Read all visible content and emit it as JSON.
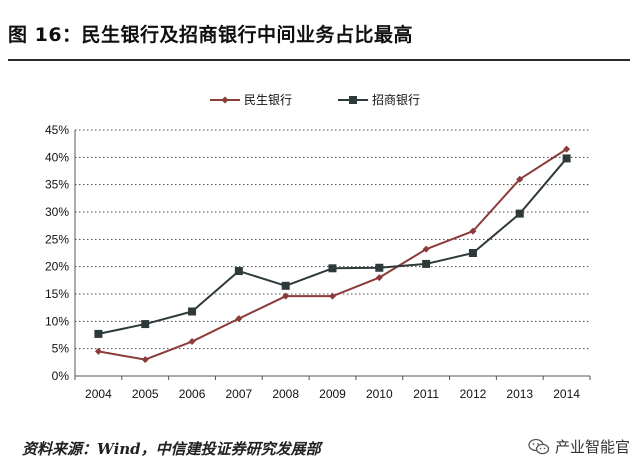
{
  "figure": {
    "title": "图 16：民生银行及招商银行中间业务占比最高",
    "source": "资料来源：Wind，中信建投证券研究发展部",
    "watermark": "产业智能官"
  },
  "chart_data": {
    "type": "line",
    "title": "",
    "xlabel": "",
    "ylabel": "",
    "x": [
      "2004",
      "2005",
      "2006",
      "2007",
      "2008",
      "2009",
      "2010",
      "2011",
      "2012",
      "2013",
      "2014"
    ],
    "ylim": [
      0,
      0.45
    ],
    "yticks": [
      0,
      0.05,
      0.1,
      0.15,
      0.2,
      0.25,
      0.3,
      0.35,
      0.4,
      0.45
    ],
    "ytick_labels": [
      "0%",
      "5%",
      "10%",
      "15%",
      "20%",
      "25%",
      "30%",
      "35%",
      "40%",
      "45%"
    ],
    "grid": "horizontal dotted",
    "legend_position": "top-center",
    "series": [
      {
        "name": "民生银行",
        "marker": "diamond",
        "color": "#8c3b3b",
        "values": [
          0.045,
          0.03,
          0.063,
          0.105,
          0.146,
          0.146,
          0.18,
          0.232,
          0.265,
          0.36,
          0.415
        ]
      },
      {
        "name": "招商银行",
        "marker": "square",
        "color": "#2e3a3a",
        "values": [
          0.077,
          0.095,
          0.118,
          0.192,
          0.165,
          0.197,
          0.198,
          0.205,
          0.225,
          0.297,
          0.398
        ]
      }
    ]
  }
}
